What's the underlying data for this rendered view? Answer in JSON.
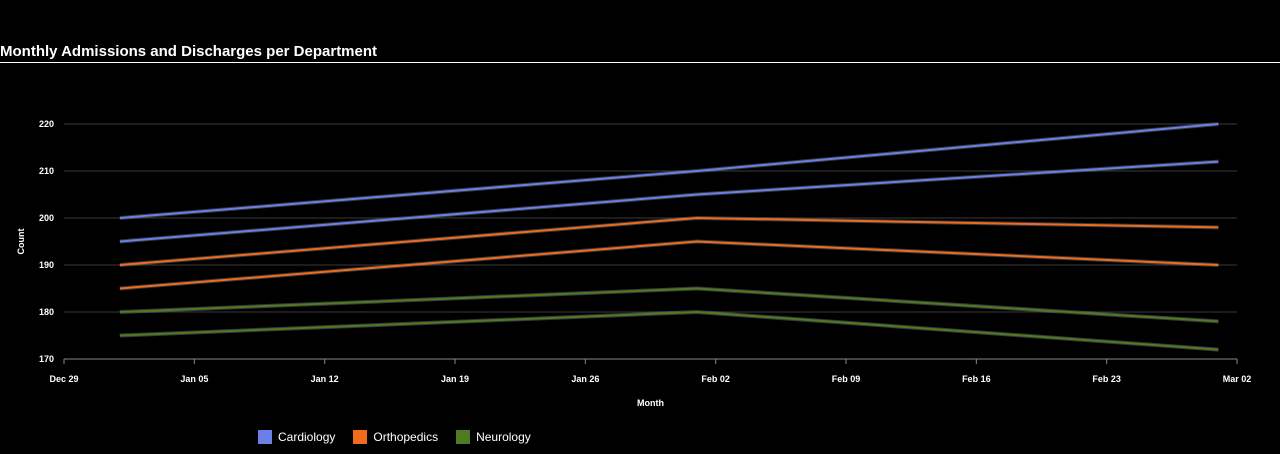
{
  "chart_data": {
    "type": "line",
    "title": "Monthly Admissions and Discharges per Department",
    "xlabel": "Month",
    "ylabel": "Count",
    "ylim": [
      170,
      220
    ],
    "xlim": [
      "2024-12-29",
      "2025-03-02"
    ],
    "y_ticks": [
      170,
      180,
      190,
      200,
      210,
      220
    ],
    "x_ticks": [
      {
        "date": "2024-12-29",
        "label": "Dec 29"
      },
      {
        "date": "2025-01-05",
        "label": "Jan 05"
      },
      {
        "date": "2025-01-12",
        "label": "Jan 12"
      },
      {
        "date": "2025-01-19",
        "label": "Jan 19"
      },
      {
        "date": "2025-01-26",
        "label": "Jan 26"
      },
      {
        "date": "2025-02-02",
        "label": "Feb 02"
      },
      {
        "date": "2025-02-09",
        "label": "Feb 09"
      },
      {
        "date": "2025-02-16",
        "label": "Feb 16"
      },
      {
        "date": "2025-02-23",
        "label": "Feb 23"
      },
      {
        "date": "2025-03-02",
        "label": "Mar 02"
      }
    ],
    "x": [
      "2025-01-01",
      "2025-02-01",
      "2025-03-01"
    ],
    "grid": true,
    "legend_position": "bottom-left",
    "series": [
      {
        "name": "Cardiology",
        "color": "#6b7fe8",
        "values": [
          200,
          210,
          220
        ]
      },
      {
        "name": "",
        "color": "#6b7fe8",
        "values": [
          195,
          205,
          212
        ]
      },
      {
        "name": "Orthopedics",
        "color": "#f26a1b",
        "values": [
          190,
          200,
          198
        ]
      },
      {
        "name": "",
        "color": "#f26a1b",
        "values": [
          185,
          195,
          190
        ]
      },
      {
        "name": "Neurology",
        "color": "#4f7a22",
        "values": [
          180,
          185,
          178
        ]
      },
      {
        "name": "",
        "color": "#4f7a22",
        "values": [
          175,
          180,
          172
        ]
      }
    ]
  },
  "legend": [
    {
      "label": "Cardiology",
      "color": "#6b7fe8"
    },
    {
      "label": "Orthopedics",
      "color": "#f26a1b"
    },
    {
      "label": "Neurology",
      "color": "#4f7a22"
    }
  ]
}
